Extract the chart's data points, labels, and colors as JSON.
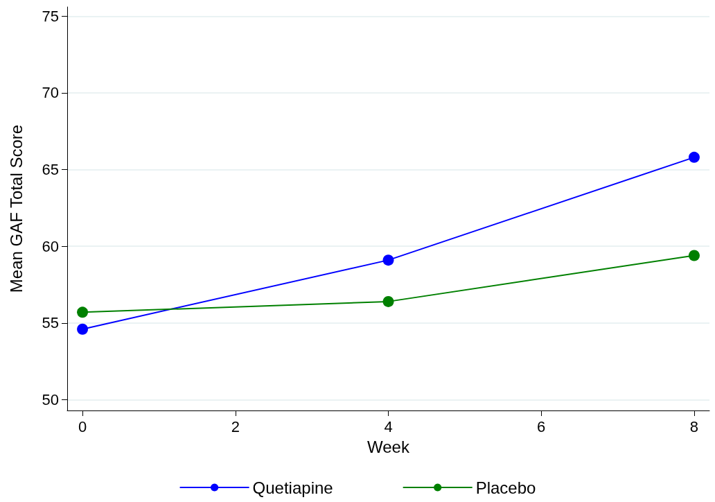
{
  "chart_data": {
    "type": "line",
    "xlabel": "Week",
    "ylabel": "Mean GAF Total Score",
    "xlim": [
      -0.2,
      8.2
    ],
    "xticks": [
      0,
      2,
      4,
      6,
      8
    ],
    "ylim": [
      49.3,
      75.6
    ],
    "yticks": [
      50,
      55,
      60,
      65,
      70,
      75
    ],
    "grid": "y",
    "legend": "bottom",
    "marker": "circle",
    "line_style": "solid",
    "series": [
      {
        "name": "Quetiapine",
        "color": "#0000ff",
        "x": [
          0,
          4,
          8
        ],
        "values": [
          54.6,
          59.1,
          65.8
        ]
      },
      {
        "name": "Placebo",
        "color": "#008000",
        "x": [
          0,
          4,
          8
        ],
        "values": [
          55.7,
          56.4,
          59.4
        ]
      }
    ]
  }
}
